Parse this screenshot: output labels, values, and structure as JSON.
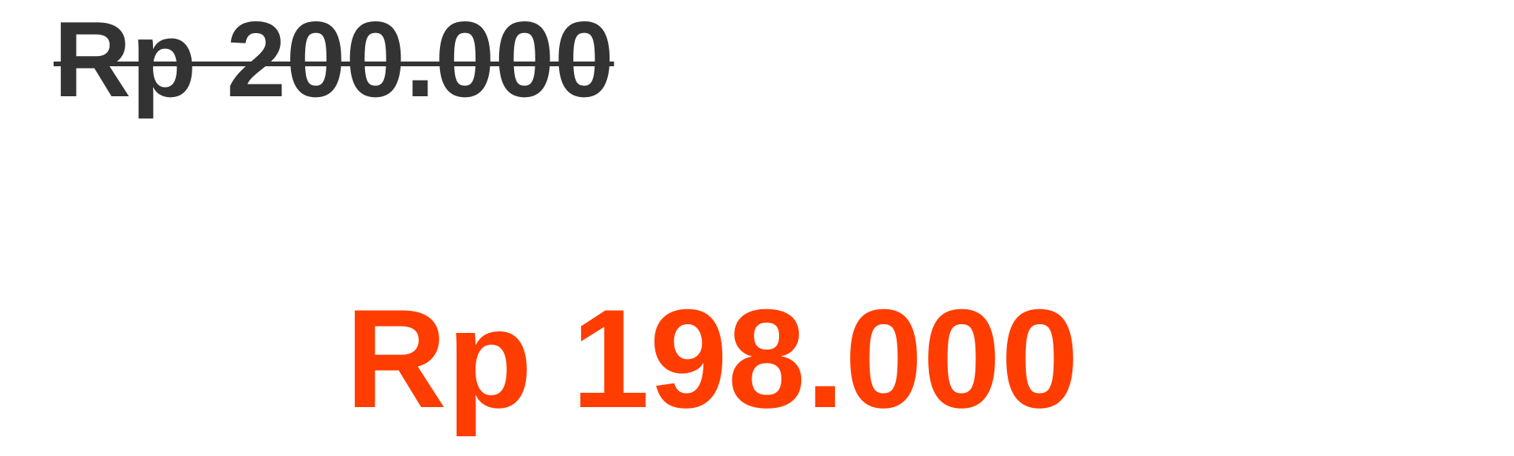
{
  "price": {
    "original": "Rp 200.000",
    "sale": "Rp 198.000",
    "colors": {
      "original": "#333333",
      "sale": "#ff3d00"
    }
  }
}
